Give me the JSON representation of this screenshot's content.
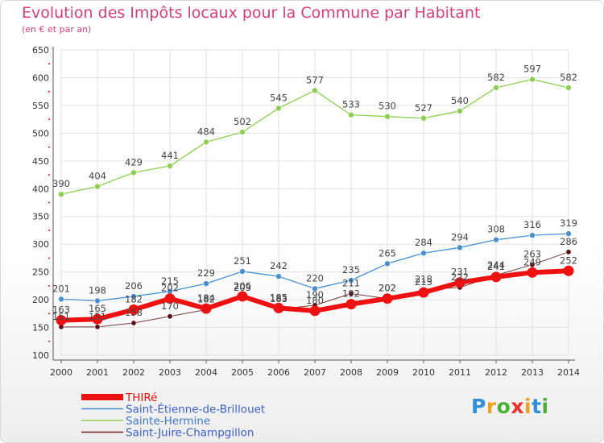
{
  "header": {
    "title": "Evolution des Impôts locaux pour la Commune par Habitant",
    "subtitle": "(en € et par an)"
  },
  "brand": {
    "logo": [
      "P",
      "r",
      "o",
      "x",
      "i",
      "t",
      "i"
    ],
    "logo_colors": [
      "#2f8fd8",
      "#f0a020",
      "#4caf3a",
      "#e8342c",
      "#f0a020",
      "#2f8fd8",
      "#4caf3a"
    ]
  },
  "chart_data": {
    "type": "line",
    "title": "Evolution des Impôts locaux pour la Commune par Habitant",
    "subtitle": "(en € et par an)",
    "xlabel": "",
    "ylabel": "",
    "ylim": [
      100,
      650
    ],
    "yticks": [
      100,
      150,
      200,
      250,
      300,
      350,
      400,
      450,
      500,
      550,
      600,
      650
    ],
    "categories": [
      "2000",
      "2001",
      "2002",
      "2003",
      "2004",
      "2005",
      "2006",
      "2007",
      "2008",
      "2009",
      "2010",
      "2011",
      "2012",
      "2013",
      "2014"
    ],
    "grid": true,
    "legend_position": "bottom-left",
    "series": [
      {
        "name": "Saint-Juire-Champgillon",
        "color": "#6e1f1f",
        "values": [
          151,
          151,
          158,
          170,
          182,
          203,
          183,
          190,
          211,
          202,
          218,
          222,
          244,
          263,
          286
        ],
        "show_labels": false
      },
      {
        "name": "Saint-Étienne-de-Brillouet",
        "color": "#4a90cf",
        "values": [
          201,
          198,
          206,
          215,
          229,
          251,
          242,
          220,
          235,
          265,
          284,
          294,
          308,
          316,
          319
        ],
        "show_labels": true
      },
      {
        "name": "Sainte-Hermine",
        "color": "#8ccf52",
        "values": [
          390,
          404,
          429,
          441,
          484,
          502,
          545,
          577,
          533,
          530,
          527,
          540,
          582,
          597,
          582
        ],
        "show_labels": true
      },
      {
        "name": "THIRé",
        "color": "#ee1111",
        "values": [
          163,
          165,
          182,
          202,
          184,
          206,
          185,
          180,
          192,
          202,
          213,
          231,
          241,
          249,
          252
        ],
        "show_labels": true
      }
    ],
    "extra_labels": [
      {
        "series": "Saint-Juire-Champgillon",
        "index": 0,
        "text": "151"
      },
      {
        "series": "Saint-Juire-Champgillon",
        "index": 1,
        "text": "151"
      },
      {
        "series": "Saint-Juire-Champgillon",
        "index": 2,
        "text": "158"
      },
      {
        "series": "Saint-Juire-Champgillon",
        "index": 3,
        "text": "170"
      },
      {
        "series": "Saint-Juire-Champgillon",
        "index": 4,
        "text": "182"
      },
      {
        "series": "Saint-Juire-Champgillon",
        "index": 5,
        "text": "203"
      },
      {
        "series": "Saint-Juire-Champgillon",
        "index": 6,
        "text": "183"
      },
      {
        "series": "Saint-Juire-Champgillon",
        "index": 7,
        "text": "190"
      },
      {
        "series": "Saint-Juire-Champgillon",
        "index": 8,
        "text": "211"
      },
      {
        "series": "Saint-Juire-Champgillon",
        "index": 9,
        "text": "202"
      },
      {
        "series": "Saint-Juire-Champgillon",
        "index": 10,
        "text": "218"
      },
      {
        "series": "Saint-Juire-Champgillon",
        "index": 11,
        "text": "222"
      },
      {
        "series": "Saint-Juire-Champgillon",
        "index": 12,
        "text": "244"
      },
      {
        "series": "Saint-Juire-Champgillon",
        "index": 13,
        "text": "263"
      },
      {
        "series": "Saint-Juire-Champgillon",
        "index": 14,
        "text": "286"
      }
    ],
    "legend": [
      "THIRé",
      "Saint-Étienne-de-Brillouet",
      "Sainte-Hermine",
      "Saint-Juire-Champgillon"
    ]
  }
}
